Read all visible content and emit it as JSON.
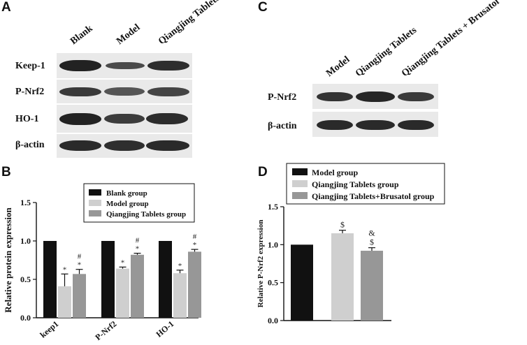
{
  "panels": {
    "A": {
      "label": "A",
      "columns": [
        "Blank",
        "Model",
        "Qiangjing Tablets"
      ],
      "rows": [
        "Keep-1",
        "P-Nrf2",
        "HO-1",
        "β-actin"
      ]
    },
    "C": {
      "label": "C",
      "columns": [
        "Model",
        "Qiangjing Tablets",
        "Qiangjing Tablets + Brusatol"
      ],
      "rows": [
        "P-Nrf2",
        "β-actin"
      ]
    },
    "B": {
      "label": "B"
    },
    "D": {
      "label": "D"
    }
  },
  "chart_data": [
    {
      "type": "bar",
      "panel": "B",
      "categories": [
        "keep1",
        "P-Nrf2",
        "HO-1"
      ],
      "series": [
        {
          "name": "Blank group",
          "values": [
            1.0,
            1.0,
            1.0
          ],
          "errors": [
            0,
            0,
            0
          ],
          "annotations": [
            "",
            "",
            ""
          ],
          "color": "#111111"
        },
        {
          "name": "Model group",
          "values": [
            0.41,
            0.64,
            0.58
          ],
          "errors": [
            0.16,
            0.02,
            0.04
          ],
          "annotations": [
            "*",
            "*",
            "*"
          ],
          "color": "#cfcfcf"
        },
        {
          "name": "Qiangjing Tablets group",
          "values": [
            0.57,
            0.82,
            0.86
          ],
          "errors": [
            0.06,
            0.02,
            0.03
          ],
          "annotations": [
            "*\n#",
            "*\n#",
            "*\n#"
          ],
          "color": "#979797"
        }
      ],
      "ylabel": "Relative protein expression",
      "xlabel": "",
      "ylim": [
        0,
        1.5
      ],
      "yticks": [
        "0.0",
        "0.5",
        "1.0",
        "1.5"
      ],
      "legend": "top-right"
    },
    {
      "type": "bar",
      "panel": "D",
      "categories": [
        "Model group",
        "Qiangjing Tablets group",
        "Qiangjing Tablets+Brusatol group"
      ],
      "series": [
        {
          "name": "P-Nrf2",
          "values": [
            1.0,
            1.15,
            0.92
          ],
          "errors": [
            0,
            0.04,
            0.04
          ],
          "annotations": [
            "",
            "$",
            "$\n&"
          ],
          "colors": [
            "#111111",
            "#cfcfcf",
            "#979797"
          ]
        }
      ],
      "legend_labels": [
        "Model group",
        "Qiangjing Tablets group",
        "Qiangjing Tablets+Brusatol group"
      ],
      "ylabel": "Relative P-Nrf2  expression",
      "xlabel": "",
      "ylim": [
        0,
        1.5
      ],
      "yticks": [
        "0.0",
        "0.5",
        "1.0",
        "1.5"
      ],
      "legend": "top"
    }
  ]
}
